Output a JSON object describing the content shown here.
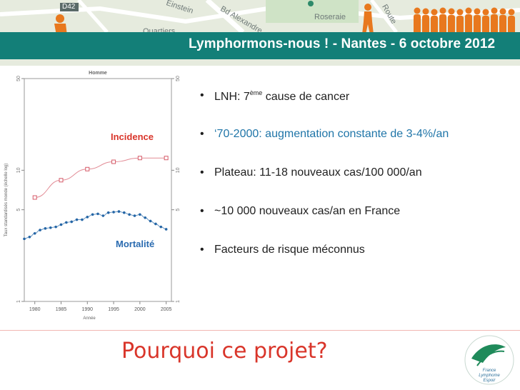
{
  "banner": {
    "title": "Lymphormons-nous ! - Nantes - 6 octobre 2012",
    "map_labels": [
      "D42",
      "Quartiers",
      "Einstein",
      "Roseraie",
      "Route",
      "Bd Alexandre"
    ],
    "colors": {
      "header_bar": "#137f78",
      "people": "#e8781e"
    }
  },
  "chart_data": {
    "type": "line",
    "title": "Homme",
    "xlabel": "Année",
    "ylabel": "Taux standardisés monde (échelle log)",
    "x_ticks": [
      "1980",
      "1985",
      "1990",
      "1995",
      "2000",
      "2005"
    ],
    "y_ticks": [
      "1",
      "5",
      "10",
      "50"
    ],
    "y_scale": "log",
    "xlim": [
      1978,
      2006
    ],
    "ylim": [
      1,
      50
    ],
    "grid": false,
    "series": [
      {
        "name": "Incidence",
        "color": "#d65a68",
        "x": [
          1980,
          1985,
          1990,
          1995,
          2000,
          2005
        ],
        "y": [
          6.2,
          8.4,
          10.2,
          11.6,
          12.4,
          12.4
        ]
      },
      {
        "name": "Mortalité",
        "color": "#2566a6",
        "x": [
          1978,
          1979,
          1980,
          1981,
          1982,
          1983,
          1984,
          1985,
          1986,
          1987,
          1988,
          1989,
          1990,
          1991,
          1992,
          1993,
          1994,
          1995,
          1996,
          1997,
          1998,
          1999,
          2000,
          2001,
          2002,
          2003,
          2004,
          2005
        ],
        "y": [
          3.0,
          3.1,
          3.3,
          3.5,
          3.6,
          3.65,
          3.7,
          3.85,
          4.0,
          4.05,
          4.2,
          4.2,
          4.4,
          4.6,
          4.65,
          4.5,
          4.75,
          4.8,
          4.85,
          4.75,
          4.6,
          4.5,
          4.6,
          4.35,
          4.1,
          3.9,
          3.7,
          3.55
        ]
      }
    ]
  },
  "labels": {
    "incidence": "Incidence",
    "mortalite": "Mortalité"
  },
  "bullets": [
    {
      "pre": "LNH: 7",
      "sup": "ème",
      "post": " cause de cancer"
    },
    {
      "text": "‘70-2000: augmentation constante de 3-4%/an"
    },
    {
      "text": "Plateau: 11-18 nouveaux cas/100 000/an"
    },
    {
      "text": "~10 000 nouveaux cas/an en France"
    },
    {
      "text": "Facteurs de risque méconnus"
    }
  ],
  "footer": {
    "title": "Pourquoi ce projet?",
    "logo_text": [
      "France",
      "Lymphome",
      "Espoir"
    ]
  }
}
